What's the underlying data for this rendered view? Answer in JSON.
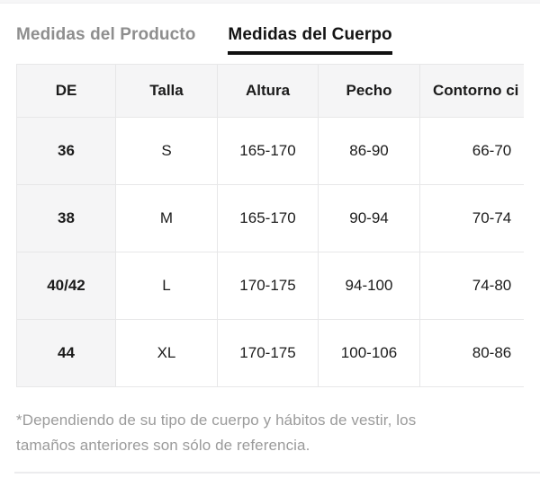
{
  "tabs": {
    "product_label": "Medidas del Producto",
    "body_label": "Medidas del Cuerpo"
  },
  "table": {
    "headers": [
      "DE",
      "Talla",
      "Altura",
      "Pecho",
      "Contorno ci"
    ],
    "rows": [
      [
        "36",
        "S",
        "165-170",
        "86-90",
        "66-70"
      ],
      [
        "38",
        "M",
        "165-170",
        "90-94",
        "70-74"
      ],
      [
        "40/42",
        "L",
        "170-175",
        "94-100",
        "74-80"
      ],
      [
        "44",
        "XL",
        "170-175",
        "100-106",
        "80-86"
      ]
    ]
  },
  "footnote": {
    "line1": "*Dependiendo de su tipo de cuerpo y hábitos de vestir, los",
    "line2": "tamaños anteriores son sólo de referencia."
  },
  "colors": {
    "active_tab_text": "#141414",
    "active_tab_underline": "#111111",
    "inactive_tab_text": "#8e8e8e",
    "header_cell_bg": "#f5f5f6",
    "table_border": "#e7e7e8",
    "footnote_text": "#9b9b9b"
  }
}
